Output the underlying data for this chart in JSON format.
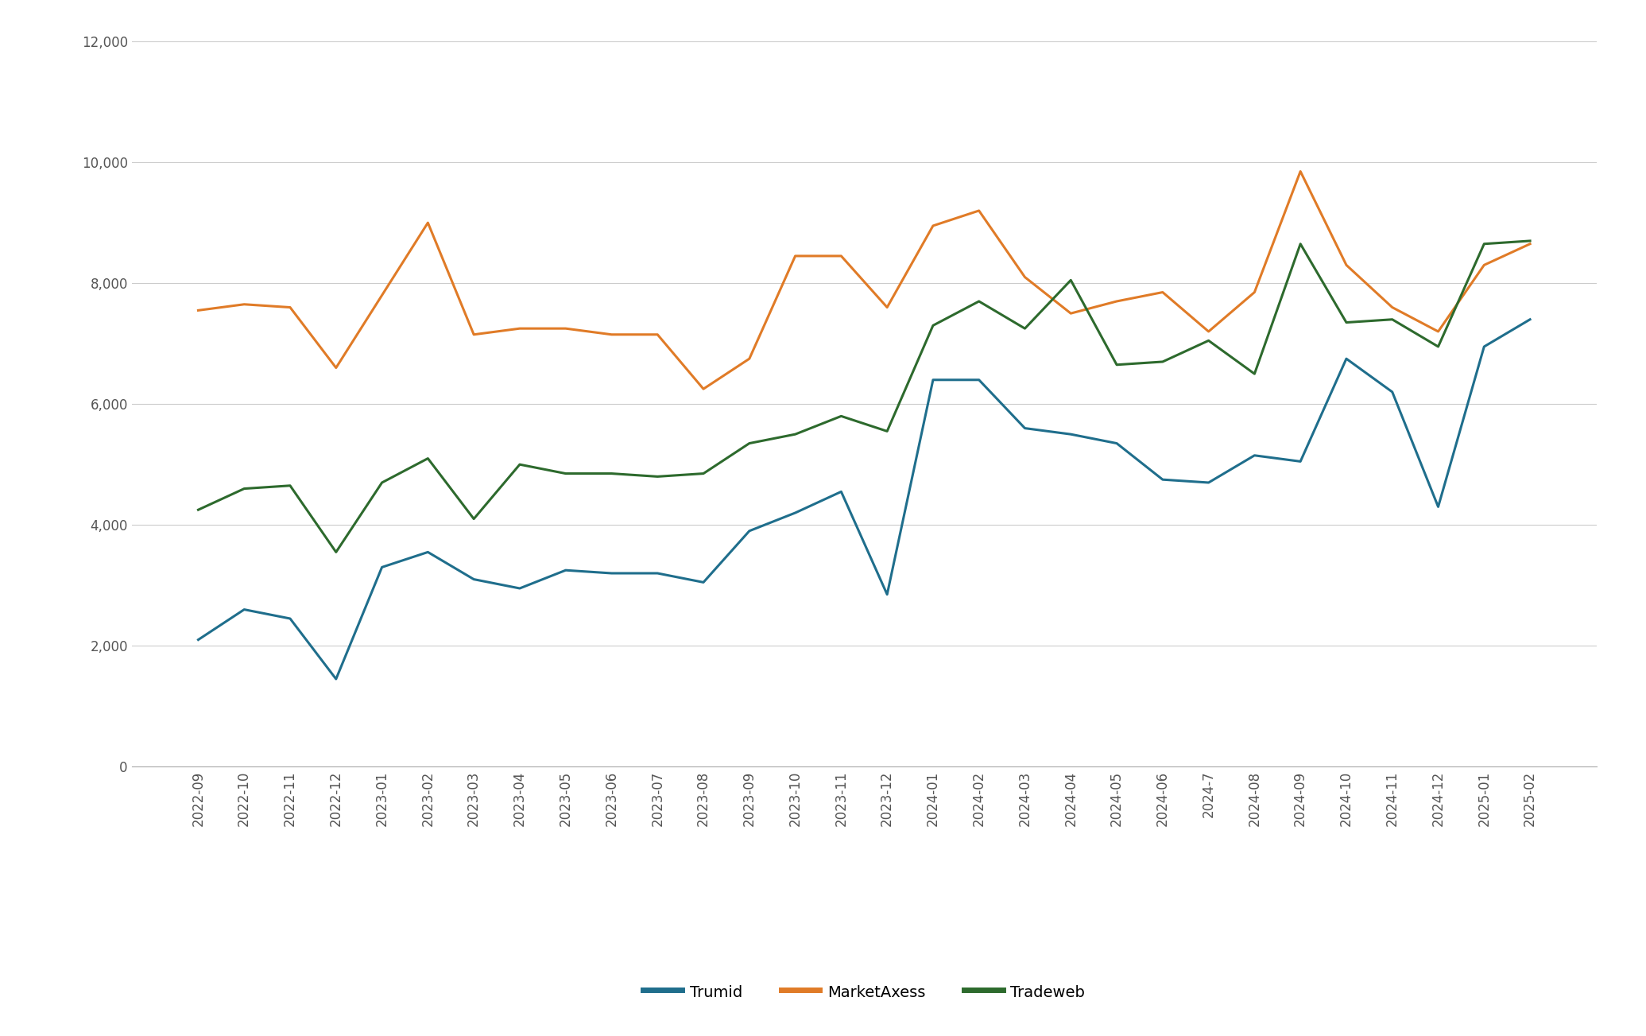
{
  "labels": [
    "2022-09",
    "2022-10",
    "2022-11",
    "2022-12",
    "2023-01",
    "2023-02",
    "2023-03",
    "2023-04",
    "2023-05",
    "2023-06",
    "2023-07",
    "2023-08",
    "2023-09",
    "2023-10",
    "2023-11",
    "2023-12",
    "2024-01",
    "2024-02",
    "2024-03",
    "2024-04",
    "2024-05",
    "2024-06",
    "2024-7",
    "2024-08",
    "2024-09",
    "2024-10",
    "2024-11",
    "2024-12",
    "2025-01",
    "2025-02"
  ],
  "trumid": [
    2100,
    2600,
    2450,
    1450,
    3300,
    3550,
    3100,
    2950,
    3250,
    3200,
    3200,
    3050,
    3900,
    4200,
    4550,
    2850,
    6400,
    6400,
    5600,
    5500,
    5350,
    4750,
    4700,
    5150,
    5050,
    6750,
    6200,
    4300,
    6950,
    7400
  ],
  "marketaxess": [
    7550,
    7650,
    7600,
    6600,
    7800,
    9000,
    7150,
    7250,
    7250,
    7150,
    7150,
    6250,
    6750,
    8450,
    8450,
    7600,
    8950,
    9200,
    8100,
    7500,
    7700,
    7850,
    7200,
    7850,
    9850,
    8300,
    7600,
    7200,
    8300,
    8650
  ],
  "tradeweb": [
    4250,
    4600,
    4650,
    3550,
    4700,
    5100,
    4100,
    5000,
    4850,
    4850,
    4800,
    4850,
    5350,
    5500,
    5800,
    5550,
    7300,
    7700,
    7250,
    8050,
    6650,
    6700,
    7050,
    6500,
    8650,
    7350,
    7400,
    6950,
    8650,
    8700
  ],
  "trumid_color": "#1f6e8c",
  "marketaxess_color": "#e07b27",
  "tradeweb_color": "#2d6a2d",
  "background_color": "#ffffff",
  "ylim": [
    0,
    12000
  ],
  "yticks": [
    0,
    2000,
    4000,
    6000,
    8000,
    10000,
    12000
  ],
  "legend_labels": [
    "Trumid",
    "MarketAxess",
    "Tradeweb"
  ],
  "tick_label_color": "#555555",
  "grid_color": "#cccccc",
  "bottom_spine_color": "#aaaaaa",
  "line_width": 2.2,
  "tick_fontsize": 12,
  "legend_fontsize": 14
}
